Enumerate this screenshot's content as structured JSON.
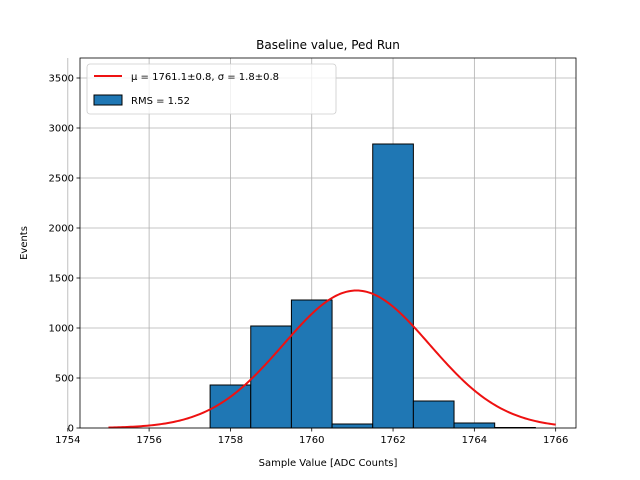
{
  "chart_data": {
    "type": "bar",
    "title": "Baseline value, Ped Run",
    "xlabel": "Sample Value [ADC Counts]",
    "ylabel": "Events",
    "xlim": [
      1754.3,
      1766.5
    ],
    "ylim": [
      0,
      3700
    ],
    "xticks": [
      1754,
      1756,
      1758,
      1760,
      1762,
      1764,
      1766
    ],
    "yticks": [
      0,
      500,
      1000,
      1500,
      2000,
      2500,
      3000,
      3500
    ],
    "grid": true,
    "legend_position": "upper-left",
    "bin_width": 1,
    "bins": [
      {
        "start": 1757.5,
        "end": 1758.5,
        "count": 430
      },
      {
        "start": 1758.5,
        "end": 1759.5,
        "count": 1020
      },
      {
        "start": 1759.5,
        "end": 1760.5,
        "count": 1280
      },
      {
        "start": 1760.5,
        "end": 1761.5,
        "count": 40
      },
      {
        "start": 1761.5,
        "end": 1762.5,
        "count": 2840
      },
      {
        "start": 1762.5,
        "end": 1763.5,
        "count": 270
      },
      {
        "start": 1763.5,
        "end": 1764.5,
        "count": 50
      },
      {
        "start": 1764.5,
        "end": 1765.5,
        "count": 5
      }
    ],
    "fit": {
      "type": "gaussian",
      "mu": 1761.1,
      "sigma": 1.8,
      "amplitude": 1375,
      "x_range": [
        1755,
        1766
      ]
    },
    "legend": {
      "fit_label": "μ = 1761.1±0.8, σ = 1.8±0.8",
      "hist_label": "RMS = 1.52"
    },
    "colors": {
      "bar_fill": "#1f77b4",
      "bar_edge": "#000000",
      "fit_line": "#ee1111",
      "grid": "#b0b0b0"
    }
  }
}
